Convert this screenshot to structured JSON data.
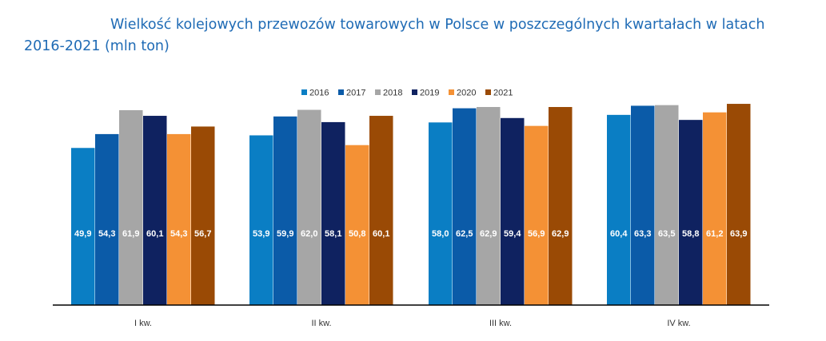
{
  "chart_data": {
    "type": "bar",
    "title": "Wielkość kolejowych przewozów towarowych w Polsce w poszczególnych kwartałach w latach 2016-2021 (mln ton)",
    "xlabel": "",
    "ylabel": "",
    "categories": [
      "I kw.",
      "II kw.",
      "III kw.",
      "IV kw."
    ],
    "series": [
      {
        "name": "2016",
        "color": "#0a7ec4",
        "values": [
          49.9,
          53.9,
          58.0,
          60.4
        ],
        "labels": [
          "49,9",
          "53,9",
          "58,0",
          "60,4"
        ]
      },
      {
        "name": "2017",
        "color": "#0b5ba8",
        "values": [
          54.3,
          59.9,
          62.5,
          63.3
        ],
        "labels": [
          "54,3",
          "59,9",
          "62,5",
          "63,3"
        ]
      },
      {
        "name": "2018",
        "color": "#a6a6a6",
        "values": [
          61.9,
          62.0,
          62.9,
          63.5
        ],
        "labels": [
          "61,9",
          "62,0",
          "62,9",
          "63,5"
        ]
      },
      {
        "name": "2019",
        "color": "#0f2260",
        "values": [
          60.1,
          58.1,
          59.4,
          58.8
        ],
        "labels": [
          "60,1",
          "58,1",
          "59,4",
          "58,8"
        ]
      },
      {
        "name": "2020",
        "color": "#f49135",
        "values": [
          54.3,
          50.8,
          56.9,
          61.2
        ],
        "labels": [
          "54,3",
          "50,8",
          "56,9",
          "61,2"
        ]
      },
      {
        "name": "2021",
        "color": "#9a4a05",
        "values": [
          56.7,
          60.1,
          62.9,
          63.9
        ],
        "labels": [
          "56,7",
          "60,1",
          "62,9",
          "63,9"
        ]
      }
    ],
    "ylim": [
      0,
      70
    ],
    "grid": false,
    "legend_position": "top-center",
    "data_labels": true
  }
}
